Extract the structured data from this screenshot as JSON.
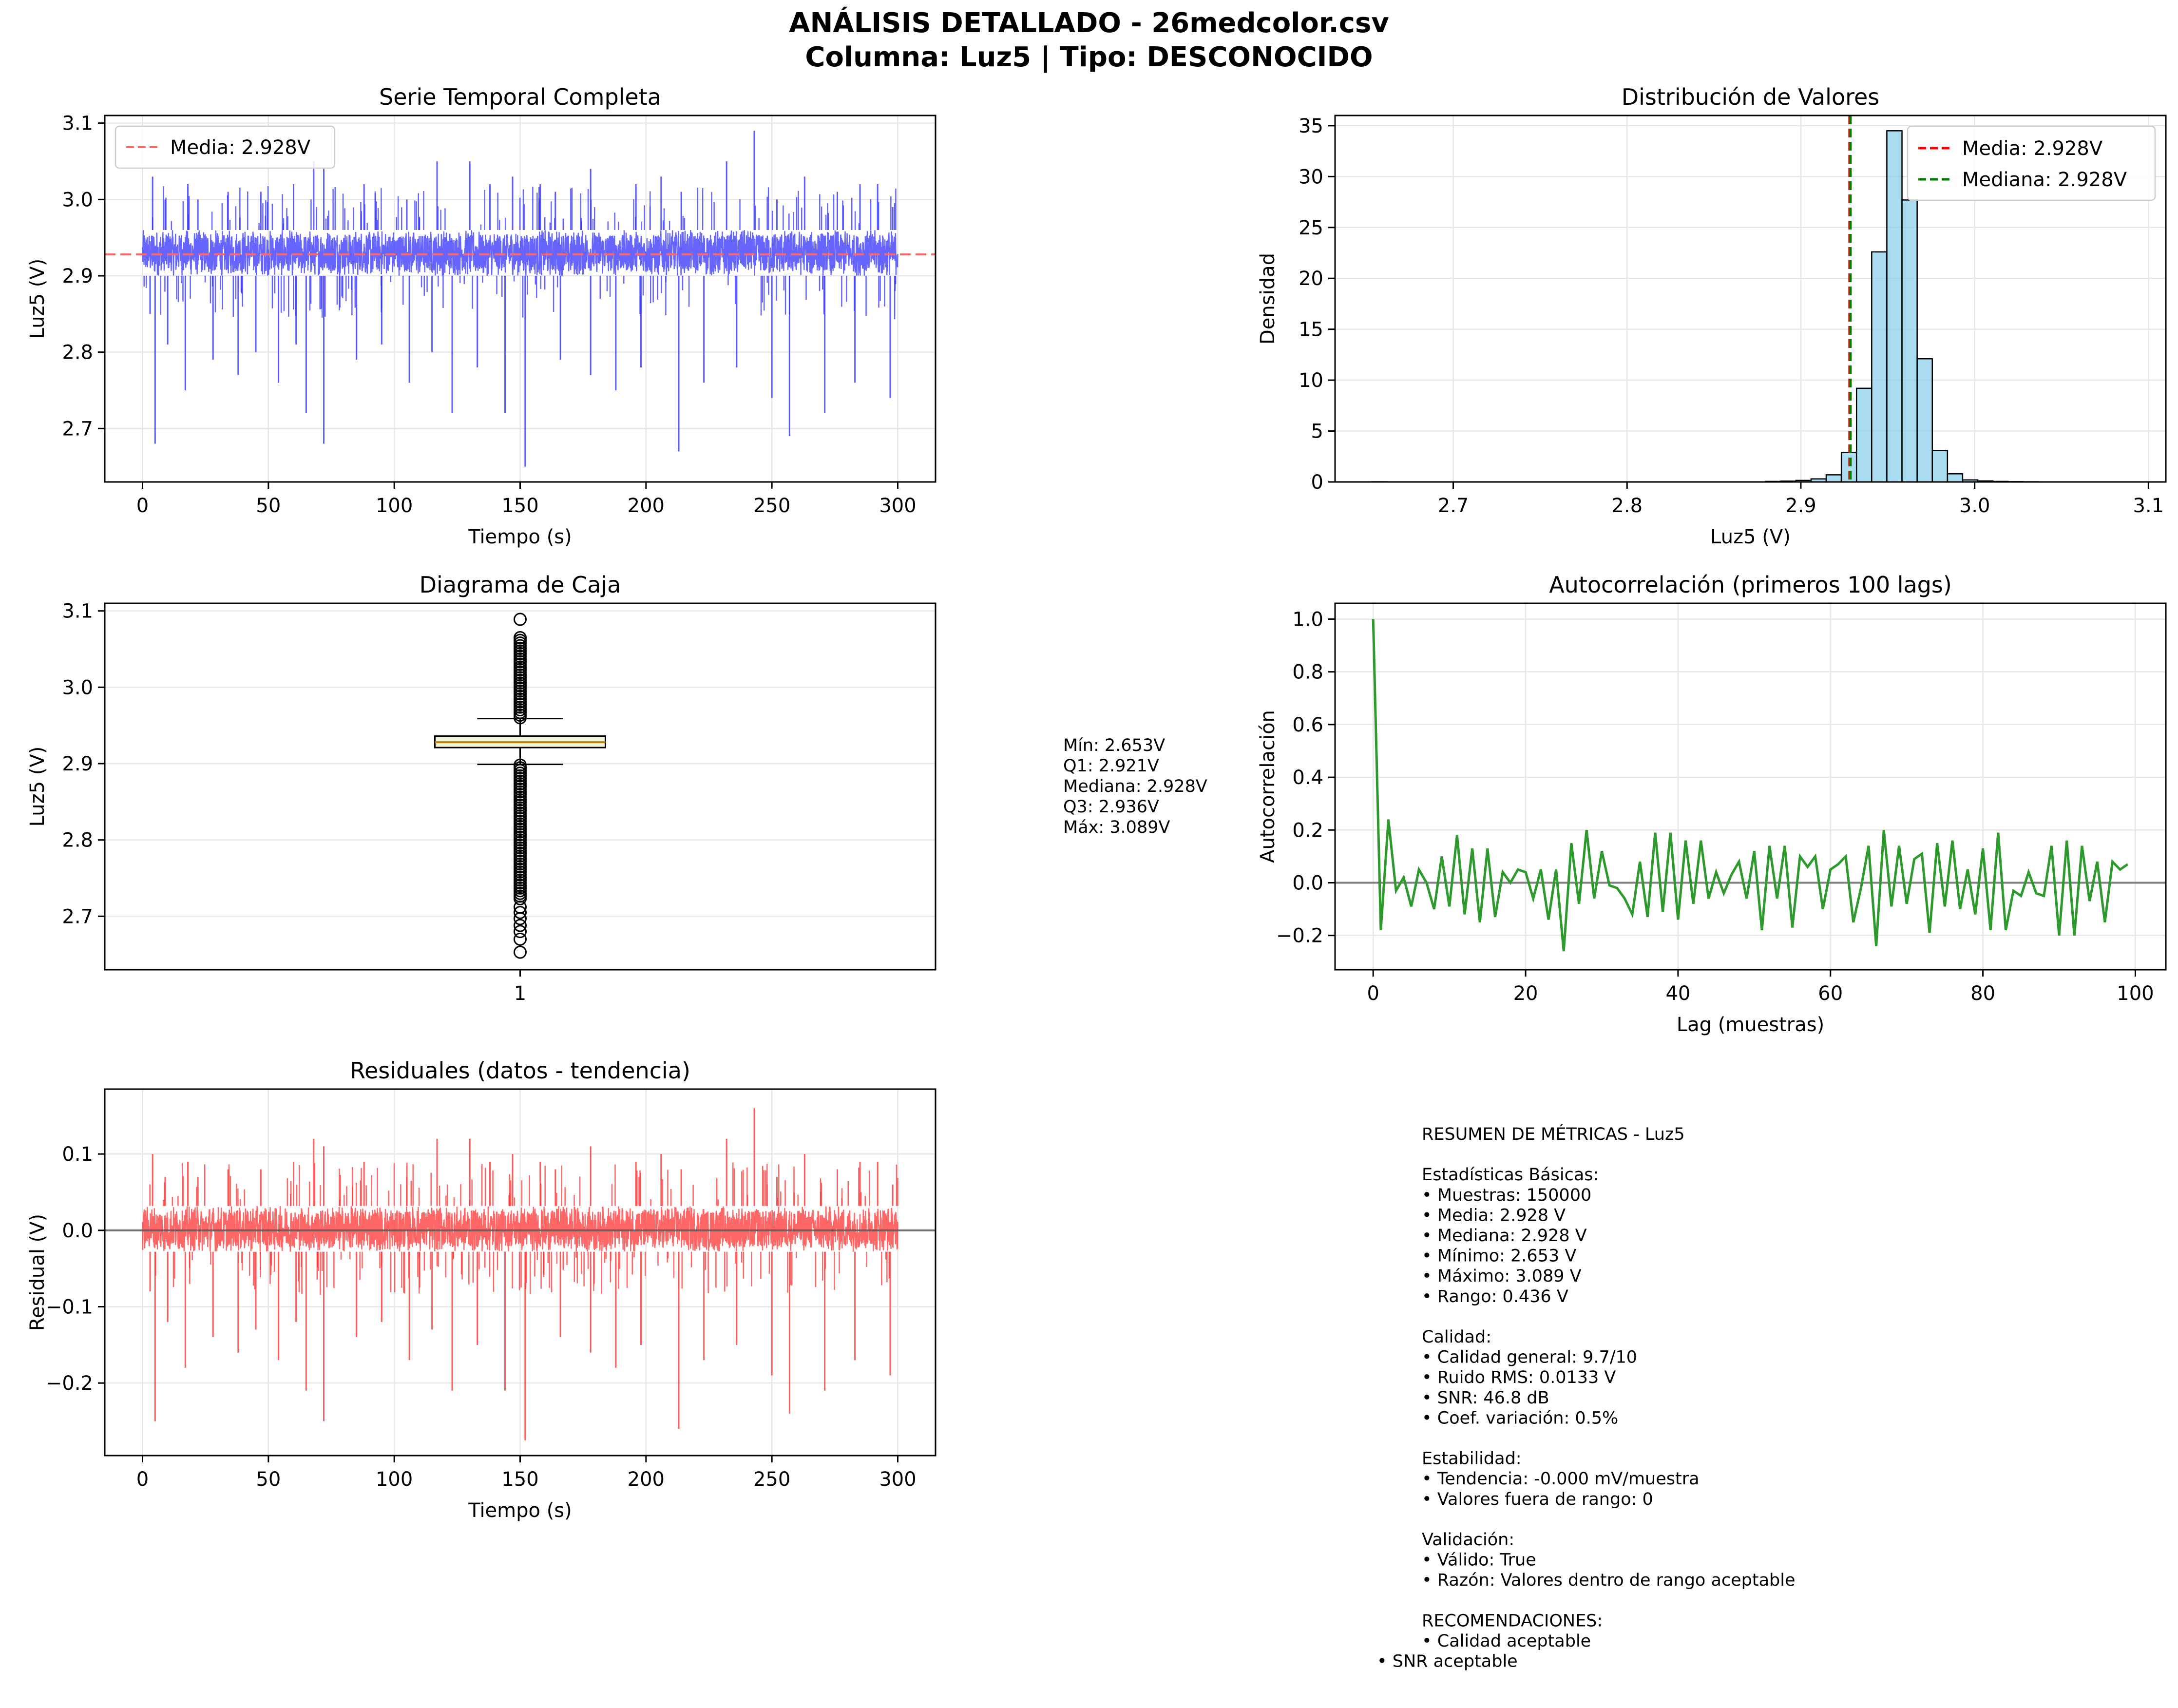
{
  "suptitle": {
    "line1": "ANÁLISIS DETALLADO - 26medcolor.csv",
    "line2": "Columna: Luz5 | Tipo: DESCONOCIDO"
  },
  "colors": {
    "time_series": "#3333ff",
    "media_line": "#ff6666",
    "hist_fill": "#87ceeb",
    "hist_media": "#ff0000",
    "hist_mediana": "#008000",
    "box_fill": "#f5f5dc",
    "box_median": "#b8860b",
    "autocorr": "#2e9a2e",
    "residual": "#ff3333",
    "zero_line": "#808080",
    "grid": "#e6e6e6"
  },
  "chart_data": [
    {
      "id": "series",
      "type": "line",
      "title": "Serie Temporal Completa",
      "xlabel": "Tiempo (s)",
      "ylabel": "Luz5 (V)",
      "xlim": [
        -15,
        315
      ],
      "ylim": [
        2.63,
        3.11
      ],
      "xticks": [
        "0",
        "50",
        "100",
        "150",
        "200",
        "250",
        "300"
      ],
      "yticks": [
        "2.7",
        "2.8",
        "2.9",
        "3.0",
        "3.1"
      ],
      "x_range": [
        0,
        300
      ],
      "mean": 2.928,
      "band": [
        2.9,
        2.96
      ],
      "spikes_up": [
        [
          4,
          3.03
        ],
        [
          9,
          3.0
        ],
        [
          18,
          3.02
        ],
        [
          22,
          3.0
        ],
        [
          34,
          3.01
        ],
        [
          47,
          3.01
        ],
        [
          60,
          3.02
        ],
        [
          68,
          3.05
        ],
        [
          72,
          3.04
        ],
        [
          88,
          3.02
        ],
        [
          105,
          3.0
        ],
        [
          117,
          3.05
        ],
        [
          130,
          3.05
        ],
        [
          138,
          3.02
        ],
        [
          147,
          3.03
        ],
        [
          158,
          3.02
        ],
        [
          164,
          3.01
        ],
        [
          178,
          3.04
        ],
        [
          196,
          3.02
        ],
        [
          206,
          3.03
        ],
        [
          214,
          3.01
        ],
        [
          232,
          3.05
        ],
        [
          243,
          3.09
        ],
        [
          252,
          3.0
        ],
        [
          263,
          3.03
        ],
        [
          276,
          3.01
        ],
        [
          285,
          3.02
        ],
        [
          292,
          3.02
        ],
        [
          298,
          2.99
        ]
      ],
      "spikes_down": [
        [
          3,
          2.85
        ],
        [
          5,
          2.68
        ],
        [
          10,
          2.81
        ],
        [
          17,
          2.75
        ],
        [
          28,
          2.79
        ],
        [
          38,
          2.77
        ],
        [
          45,
          2.8
        ],
        [
          54,
          2.76
        ],
        [
          61,
          2.81
        ],
        [
          65,
          2.72
        ],
        [
          72,
          2.68
        ],
        [
          85,
          2.79
        ],
        [
          95,
          2.81
        ],
        [
          106,
          2.76
        ],
        [
          115,
          2.8
        ],
        [
          123,
          2.72
        ],
        [
          133,
          2.78
        ],
        [
          144,
          2.72
        ],
        [
          152,
          2.65
        ],
        [
          166,
          2.79
        ],
        [
          178,
          2.77
        ],
        [
          188,
          2.75
        ],
        [
          198,
          2.78
        ],
        [
          213,
          2.67
        ],
        [
          223,
          2.76
        ],
        [
          236,
          2.78
        ],
        [
          250,
          2.74
        ],
        [
          257,
          2.69
        ],
        [
          271,
          2.72
        ],
        [
          283,
          2.76
        ],
        [
          297,
          2.74
        ]
      ],
      "legend": [
        {
          "label": "Media: 2.928V"
        }
      ]
    },
    {
      "id": "hist",
      "type": "bar",
      "title": "Distribución de Valores",
      "xlabel": "Luz5 (V)",
      "ylabel": "Densidad",
      "xlim": [
        2.632,
        3.11
      ],
      "ylim": [
        0,
        36
      ],
      "xticks": [
        "2.7",
        "2.8",
        "2.9",
        "3.0",
        "3.1"
      ],
      "yticks": [
        "0",
        "5",
        "10",
        "15",
        "20",
        "25",
        "30",
        "35"
      ],
      "bin_start": 2.653,
      "bin_width": 0.00872,
      "density": [
        0.02,
        0.01,
        0.01,
        0.01,
        0.01,
        0.01,
        0.01,
        0.01,
        0.01,
        0.01,
        0.01,
        0.01,
        0.01,
        0.01,
        0.01,
        0.01,
        0.01,
        0.01,
        0.01,
        0.01,
        0.01,
        0.01,
        0.01,
        0.01,
        0.01,
        0.01,
        0.05,
        0.08,
        0.15,
        0.3,
        0.7,
        2.9,
        9.2,
        22.6,
        34.5,
        27.7,
        12.1,
        3.1,
        0.8,
        0.2,
        0.1,
        0.05,
        0.03,
        0.02,
        0.01,
        0.01,
        0.01,
        0.01,
        0.01,
        0.01
      ],
      "media": 2.928,
      "mediana": 2.928,
      "legend": [
        {
          "label": "Media: 2.928V"
        },
        {
          "label": "Mediana: 2.928V"
        }
      ]
    },
    {
      "id": "box",
      "type": "box",
      "title": "Diagrama de Caja",
      "ylabel": "Luz5 (V)",
      "ylim": [
        2.63,
        3.11
      ],
      "yticks": [
        "2.7",
        "2.8",
        "2.9",
        "3.0",
        "3.1"
      ],
      "xticks": [
        "1"
      ],
      "min": 2.653,
      "q1": 2.921,
      "median": 2.928,
      "q3": 2.936,
      "max": 3.089,
      "whisker_low": 2.899,
      "whisker_high": 2.959,
      "stats_text": [
        "Mín: 2.653V",
        "Q1: 2.921V",
        "Mediana: 2.928V",
        "Q3: 2.936V",
        "Máx: 3.089V"
      ]
    },
    {
      "id": "acf",
      "type": "line",
      "title": "Autocorrelación (primeros 100 lags)",
      "xlabel": "Lag (muestras)",
      "ylabel": "Autocorrelación",
      "xlim": [
        -5,
        104
      ],
      "ylim": [
        -0.33,
        1.06
      ],
      "xticks": [
        "0",
        "20",
        "40",
        "60",
        "80",
        "100"
      ],
      "yticks": [
        "−0.2",
        "0.0",
        "0.2",
        "0.4",
        "0.6",
        "0.8",
        "1.0"
      ],
      "values": [
        1.0,
        -0.18,
        0.24,
        -0.03,
        0.02,
        -0.09,
        0.05,
        0.0,
        -0.1,
        0.1,
        -0.09,
        0.18,
        -0.12,
        0.13,
        -0.15,
        0.13,
        -0.13,
        0.04,
        0.0,
        0.05,
        0.04,
        -0.06,
        0.05,
        -0.14,
        0.05,
        -0.26,
        0.15,
        -0.08,
        0.2,
        -0.06,
        0.12,
        -0.01,
        -0.02,
        -0.06,
        -0.12,
        0.08,
        -0.13,
        0.19,
        -0.11,
        0.19,
        -0.14,
        0.16,
        -0.08,
        0.16,
        -0.06,
        0.04,
        -0.04,
        0.03,
        0.08,
        -0.06,
        0.12,
        -0.18,
        0.14,
        -0.06,
        0.14,
        -0.17,
        0.1,
        0.06,
        0.1,
        -0.1,
        0.05,
        0.07,
        0.1,
        -0.15,
        -0.02,
        0.14,
        -0.24,
        0.2,
        -0.09,
        0.14,
        -0.08,
        0.09,
        0.11,
        -0.19,
        0.15,
        -0.09,
        0.16,
        -0.1,
        0.05,
        -0.12,
        0.13,
        -0.18,
        0.19,
        -0.18,
        -0.03,
        -0.05,
        0.04,
        -0.04,
        -0.05,
        0.14,
        -0.2,
        0.16,
        -0.2,
        0.14,
        -0.07,
        0.08,
        -0.15,
        0.08,
        0.05,
        0.07
      ]
    },
    {
      "id": "resid",
      "type": "line",
      "title": "Residuales (datos - tendencia)",
      "xlabel": "Tiempo (s)",
      "ylabel": "Residual (V)",
      "xlim": [
        -15,
        315
      ],
      "ylim": [
        -0.295,
        0.185
      ],
      "xticks": [
        "0",
        "50",
        "100",
        "150",
        "200",
        "250",
        "300"
      ],
      "yticks": [
        "−0.2",
        "−0.1",
        "0.0",
        "0.1"
      ],
      "x_range": [
        0,
        300
      ],
      "band": [
        -0.028,
        0.032
      ],
      "spikes_up": [
        [
          4,
          0.1
        ],
        [
          9,
          0.07
        ],
        [
          18,
          0.09
        ],
        [
          22,
          0.07
        ],
        [
          34,
          0.08
        ],
        [
          47,
          0.08
        ],
        [
          60,
          0.09
        ],
        [
          68,
          0.12
        ],
        [
          72,
          0.11
        ],
        [
          88,
          0.09
        ],
        [
          105,
          0.07
        ],
        [
          117,
          0.12
        ],
        [
          130,
          0.12
        ],
        [
          138,
          0.09
        ],
        [
          147,
          0.1
        ],
        [
          158,
          0.09
        ],
        [
          164,
          0.08
        ],
        [
          178,
          0.11
        ],
        [
          196,
          0.09
        ],
        [
          206,
          0.1
        ],
        [
          214,
          0.08
        ],
        [
          232,
          0.12
        ],
        [
          243,
          0.16
        ],
        [
          252,
          0.07
        ],
        [
          263,
          0.1
        ],
        [
          276,
          0.08
        ],
        [
          285,
          0.09
        ],
        [
          292,
          0.09
        ],
        [
          298,
          0.06
        ]
      ],
      "spikes_down": [
        [
          3,
          -0.08
        ],
        [
          5,
          -0.25
        ],
        [
          10,
          -0.12
        ],
        [
          17,
          -0.18
        ],
        [
          28,
          -0.14
        ],
        [
          38,
          -0.16
        ],
        [
          45,
          -0.13
        ],
        [
          54,
          -0.17
        ],
        [
          61,
          -0.12
        ],
        [
          65,
          -0.21
        ],
        [
          72,
          -0.25
        ],
        [
          85,
          -0.14
        ],
        [
          95,
          -0.12
        ],
        [
          106,
          -0.17
        ],
        [
          115,
          -0.13
        ],
        [
          123,
          -0.21
        ],
        [
          133,
          -0.15
        ],
        [
          144,
          -0.21
        ],
        [
          152,
          -0.275
        ],
        [
          166,
          -0.14
        ],
        [
          178,
          -0.16
        ],
        [
          188,
          -0.18
        ],
        [
          198,
          -0.15
        ],
        [
          213,
          -0.26
        ],
        [
          223,
          -0.17
        ],
        [
          236,
          -0.15
        ],
        [
          250,
          -0.19
        ],
        [
          257,
          -0.24
        ],
        [
          271,
          -0.21
        ],
        [
          283,
          -0.17
        ],
        [
          297,
          -0.19
        ]
      ]
    }
  ],
  "summary_lines": [
    "RESUMEN DE MÉTRICAS - Luz5",
    "",
    "Estadísticas Básicas:",
    "• Muestras: 150000",
    "• Media: 2.928 V",
    "• Mediana: 2.928 V",
    "• Mínimo: 2.653 V",
    "• Máximo: 3.089 V",
    "• Rango: 0.436 V",
    "",
    "Calidad:",
    "• Calidad general: 9.7/10",
    "• Ruido RMS: 0.0133 V",
    "• SNR: 46.8 dB",
    "• Coef. variación: 0.5%",
    "",
    "Estabilidad:",
    "• Tendencia: -0.000 mV/muestra",
    "• Valores fuera de rango: 0",
    "",
    "Validación:",
    "• Válido: True",
    "• Razón: Valores dentro de rango aceptable",
    "",
    "RECOMENDACIONES:",
    "• Calidad aceptable"
  ],
  "summary_extra": "• SNR aceptable"
}
